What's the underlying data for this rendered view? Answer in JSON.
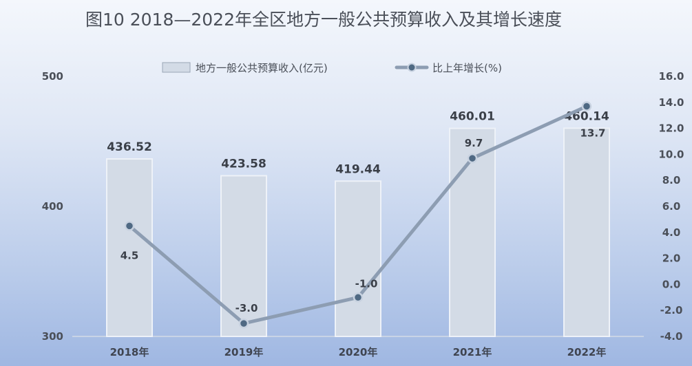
{
  "chart_data": {
    "type": "bar",
    "title": "图10  2018—2022年全区地方一般公共预算收入及其增长速度",
    "categories": [
      "2018年",
      "2019年",
      "2020年",
      "2021年",
      "2022年"
    ],
    "series": [
      {
        "name": "地方一般公共预算收入(亿元)",
        "type": "bar",
        "axis": "left",
        "values": [
          436.52,
          423.58,
          419.44,
          460.01,
          460.14
        ],
        "labels": [
          "436.52",
          "423.58",
          "419.44",
          "460.01",
          "460.14"
        ],
        "color": "#d3dbe6"
      },
      {
        "name": "比上年增长(%)",
        "type": "line",
        "axis": "right",
        "values": [
          4.5,
          -3.0,
          -1.0,
          9.7,
          13.7
        ],
        "labels": [
          "4.5",
          "-3.0",
          "-1.0",
          "9.7",
          "13.7"
        ],
        "color": "#8d9db2"
      }
    ],
    "y_left": {
      "min": 300,
      "max": 500,
      "ticks": [
        "300",
        "400",
        "500"
      ]
    },
    "y_right": {
      "min": -4.0,
      "max": 16.0,
      "ticks": [
        "-4.0",
        "-2.0",
        "0.0",
        "2.0",
        "4.0",
        "6.0",
        "8.0",
        "10.0",
        "12.0",
        "14.0",
        "16.0"
      ]
    },
    "legend": "top-center",
    "grid": false
  }
}
